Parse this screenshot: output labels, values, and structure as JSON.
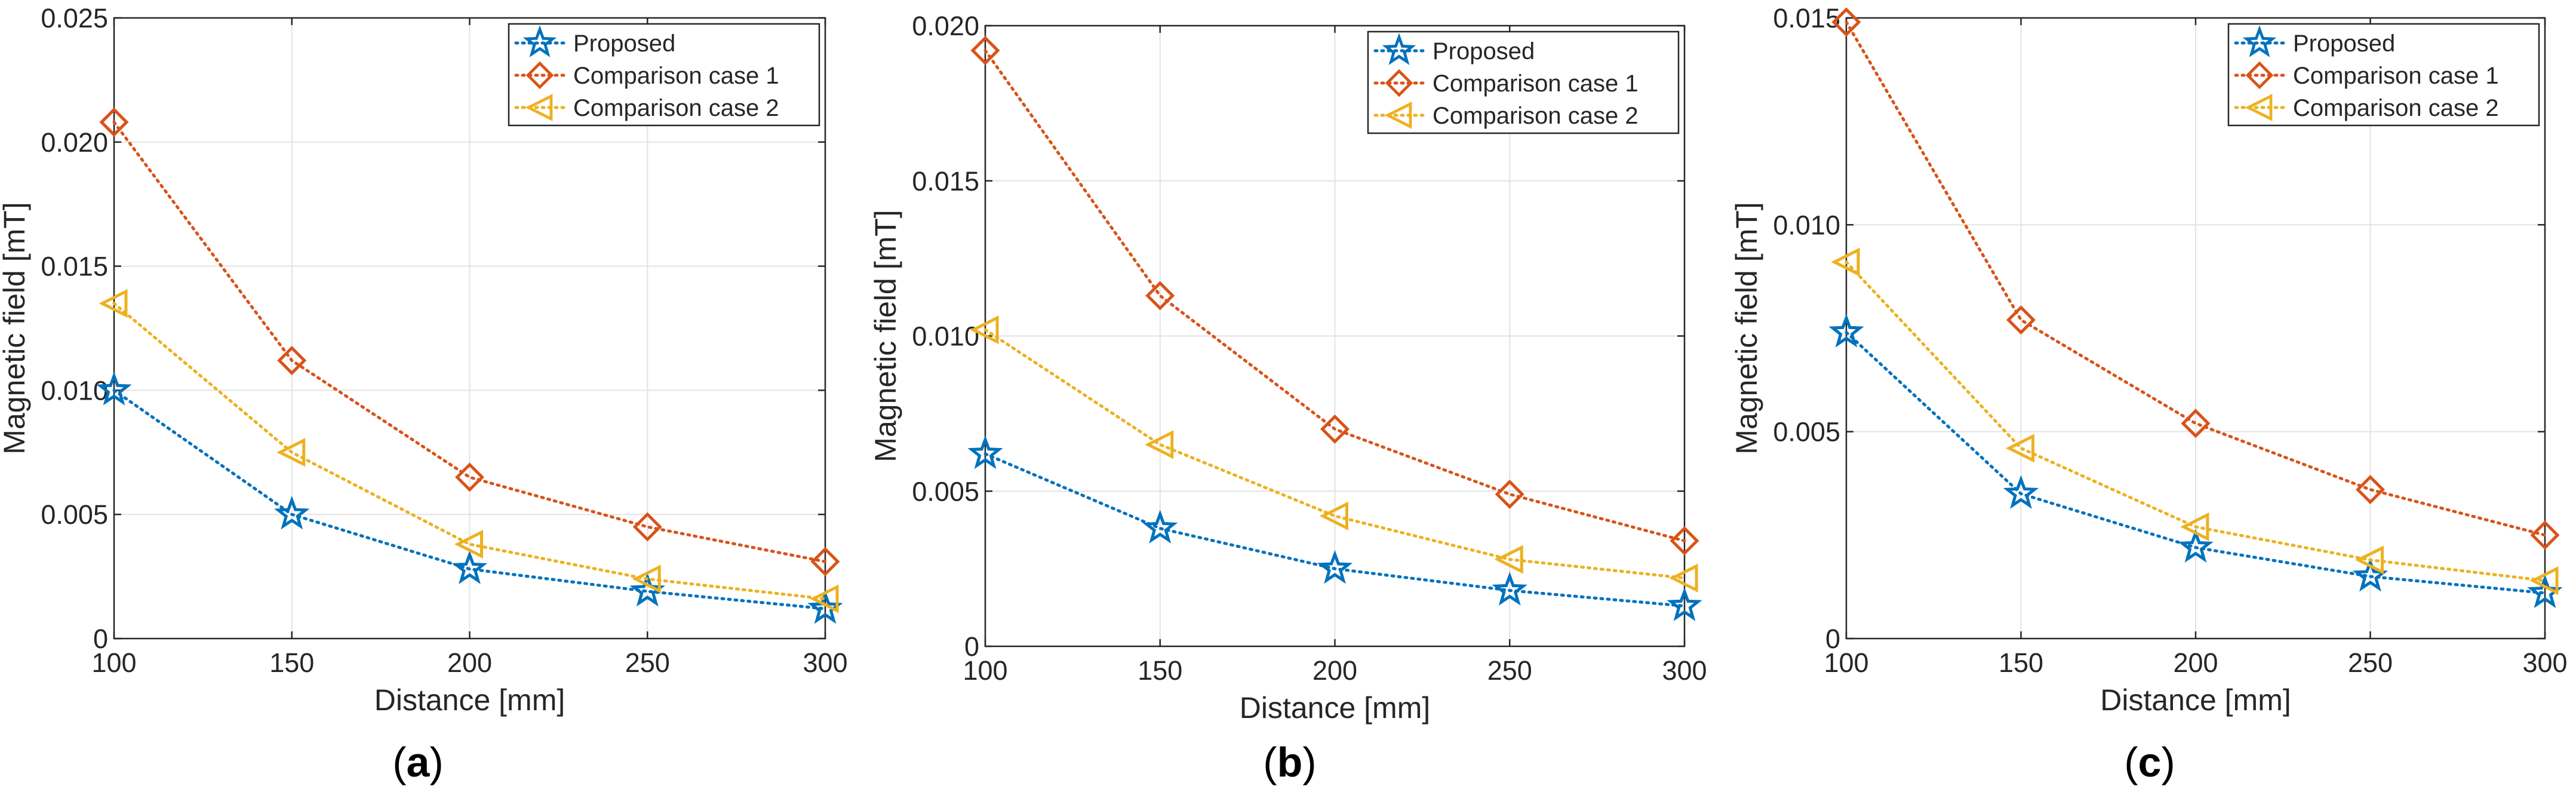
{
  "chart_data": [
    {
      "type": "line",
      "caption": "(a)",
      "caption_letter": "a",
      "xlabel": "Distance [mm]",
      "ylabel": "Magnetic field [mT]",
      "xlim": [
        100,
        300
      ],
      "ylim": [
        0,
        0.025
      ],
      "grid": true,
      "legend_position": "top-right",
      "x": [
        100,
        150,
        200,
        250,
        300
      ],
      "x_ticks": [
        "100",
        "150",
        "200",
        "250",
        "300"
      ],
      "y_ticks": [
        {
          "v": 0,
          "label": "0"
        },
        {
          "v": 0.005,
          "label": "0.005"
        },
        {
          "v": 0.01,
          "label": "0.010"
        },
        {
          "v": 0.015,
          "label": "0.015"
        },
        {
          "v": 0.02,
          "label": "0.020"
        },
        {
          "v": 0.025,
          "label": "0.025"
        }
      ],
      "series": [
        {
          "name": "Proposed",
          "marker": "star",
          "values": [
            0.01,
            0.005,
            0.0028,
            0.0019,
            0.0012
          ]
        },
        {
          "name": "Comparison case 1",
          "marker": "diamond",
          "values": [
            0.0208,
            0.0112,
            0.0065,
            0.0045,
            0.0031
          ]
        },
        {
          "name": "Comparison case 2",
          "marker": "triangle-left",
          "values": [
            0.0135,
            0.0075,
            0.0038,
            0.0024,
            0.0016
          ]
        }
      ]
    },
    {
      "type": "line",
      "caption": "(b)",
      "caption_letter": "b",
      "xlabel": "Distance [mm]",
      "ylabel": "Magnetic field [mT]",
      "xlim": [
        100,
        300
      ],
      "ylim": [
        0,
        0.02
      ],
      "grid": true,
      "legend_position": "top-right",
      "x": [
        100,
        150,
        200,
        250,
        300
      ],
      "x_ticks": [
        "100",
        "150",
        "200",
        "250",
        "300"
      ],
      "y_ticks": [
        {
          "v": 0,
          "label": "0"
        },
        {
          "v": 0.005,
          "label": "0.005"
        },
        {
          "v": 0.01,
          "label": "0.010"
        },
        {
          "v": 0.015,
          "label": "0.015"
        },
        {
          "v": 0.02,
          "label": "0.020"
        }
      ],
      "series": [
        {
          "name": "Proposed",
          "marker": "star",
          "values": [
            0.0062,
            0.0038,
            0.0025,
            0.0018,
            0.0013
          ]
        },
        {
          "name": "Comparison case 1",
          "marker": "diamond",
          "values": [
            0.0192,
            0.0113,
            0.007,
            0.0049,
            0.0034
          ]
        },
        {
          "name": "Comparison case 2",
          "marker": "triangle-left",
          "values": [
            0.0102,
            0.0065,
            0.0042,
            0.0028,
            0.0022
          ]
        }
      ]
    },
    {
      "type": "line",
      "caption": "(c)",
      "caption_letter": "c",
      "xlabel": "Distance [mm]",
      "ylabel": "Magnetic field [mT]",
      "xlim": [
        100,
        300
      ],
      "ylim": [
        0,
        0.015
      ],
      "grid": true,
      "legend_position": "top-right",
      "x": [
        100,
        150,
        200,
        250,
        300
      ],
      "x_ticks": [
        "100",
        "150",
        "200",
        "250",
        "300"
      ],
      "y_ticks": [
        {
          "v": 0,
          "label": "0"
        },
        {
          "v": 0.005,
          "label": "0.005"
        },
        {
          "v": 0.01,
          "label": "0.010"
        },
        {
          "v": 0.015,
          "label": "0.015"
        }
      ],
      "series": [
        {
          "name": "Proposed",
          "marker": "star",
          "values": [
            0.0074,
            0.0035,
            0.0022,
            0.0015,
            0.0011
          ]
        },
        {
          "name": "Comparison case 1",
          "marker": "diamond",
          "values": [
            0.0149,
            0.0077,
            0.0052,
            0.0036,
            0.0025
          ]
        },
        {
          "name": "Comparison case 2",
          "marker": "triangle-left",
          "values": [
            0.0091,
            0.0046,
            0.0027,
            0.0019,
            0.0014
          ]
        }
      ]
    }
  ],
  "colors": {
    "series": [
      "#0072BD",
      "#D95319",
      "#EDB120"
    ],
    "grid": "#e3e3e3",
    "axis": "#262626",
    "text": "#262626"
  }
}
